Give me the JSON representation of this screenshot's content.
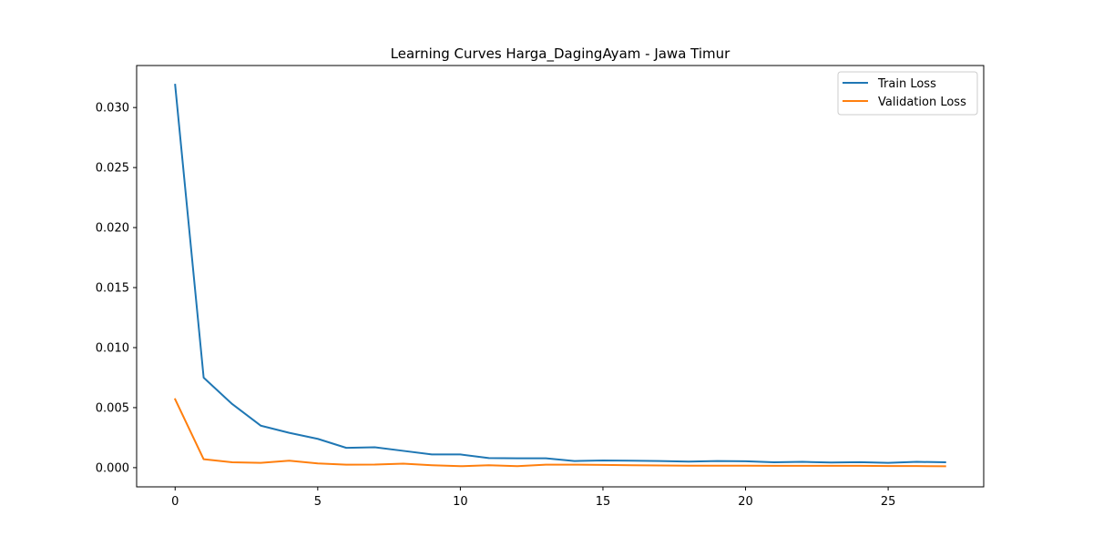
{
  "chart_data": {
    "type": "line",
    "title": "Learning Curves Harga_DagingAyam - Jawa Timur",
    "xlabel": "",
    "ylabel": "",
    "xlim": [
      -1.35,
      28.35
    ],
    "ylim": [
      -0.0016,
      0.0335
    ],
    "xticks": [
      0,
      5,
      10,
      15,
      20,
      25
    ],
    "xtick_labels": [
      "0",
      "5",
      "10",
      "15",
      "20",
      "25"
    ],
    "yticks": [
      0.0,
      0.005,
      0.01,
      0.015,
      0.02,
      0.025,
      0.03
    ],
    "ytick_labels": [
      "0.000",
      "0.005",
      "0.010",
      "0.015",
      "0.020",
      "0.025",
      "0.030"
    ],
    "grid": false,
    "legend_position": "top-right",
    "x": [
      0,
      1,
      2,
      3,
      4,
      5,
      6,
      7,
      8,
      9,
      10,
      11,
      12,
      13,
      14,
      15,
      16,
      17,
      18,
      19,
      20,
      21,
      22,
      23,
      24,
      25,
      26,
      27
    ],
    "series": [
      {
        "name": "Train Loss",
        "color": "#1f77b4",
        "values": [
          0.0319,
          0.0075,
          0.0053,
          0.0035,
          0.0029,
          0.0024,
          0.00165,
          0.0017,
          0.0014,
          0.0011,
          0.0011,
          0.0008,
          0.00078,
          0.00078,
          0.00055,
          0.0006,
          0.00058,
          0.00055,
          0.0005,
          0.00055,
          0.00053,
          0.00045,
          0.00048,
          0.00043,
          0.00046,
          0.0004,
          0.00048,
          0.00045
        ]
      },
      {
        "name": "Validation Loss",
        "color": "#ff7f0e",
        "values": [
          0.0057,
          0.0007,
          0.00045,
          0.0004,
          0.00058,
          0.00035,
          0.00025,
          0.00026,
          0.00033,
          0.0002,
          0.00012,
          0.0002,
          0.00012,
          0.00025,
          0.00025,
          0.00023,
          0.0002,
          0.00018,
          0.00016,
          0.00016,
          0.00016,
          0.00015,
          0.00015,
          0.00015,
          0.00015,
          0.00013,
          0.00013,
          0.00012
        ]
      }
    ]
  }
}
